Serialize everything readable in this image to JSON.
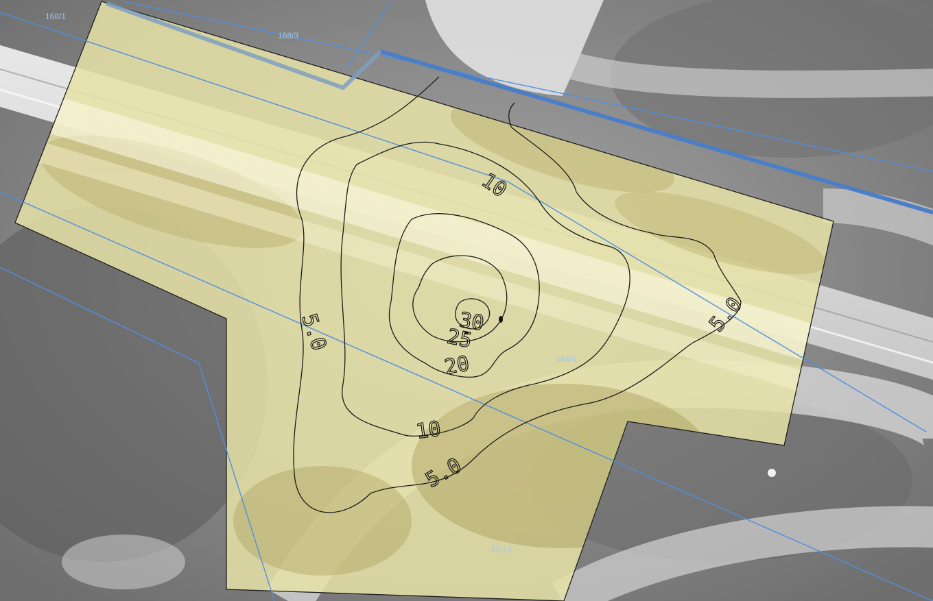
{
  "map": {
    "parcel_labels": {
      "p1": "168/1",
      "p2": "168/3",
      "p3": "164/4",
      "p4": "55/12"
    },
    "contour_labels": {
      "l50a": "5.0",
      "l50b": "5.0",
      "l50c": "5.0",
      "l10a": "10",
      "l10b": "10",
      "l20": "20",
      "l25": "25",
      "l30": "30"
    },
    "colors": {
      "overlay": "#e8e3a8",
      "contour": "#1a1a1a",
      "boundary": "#4f8fe0",
      "parcel_label": "#9cc6ec"
    }
  }
}
